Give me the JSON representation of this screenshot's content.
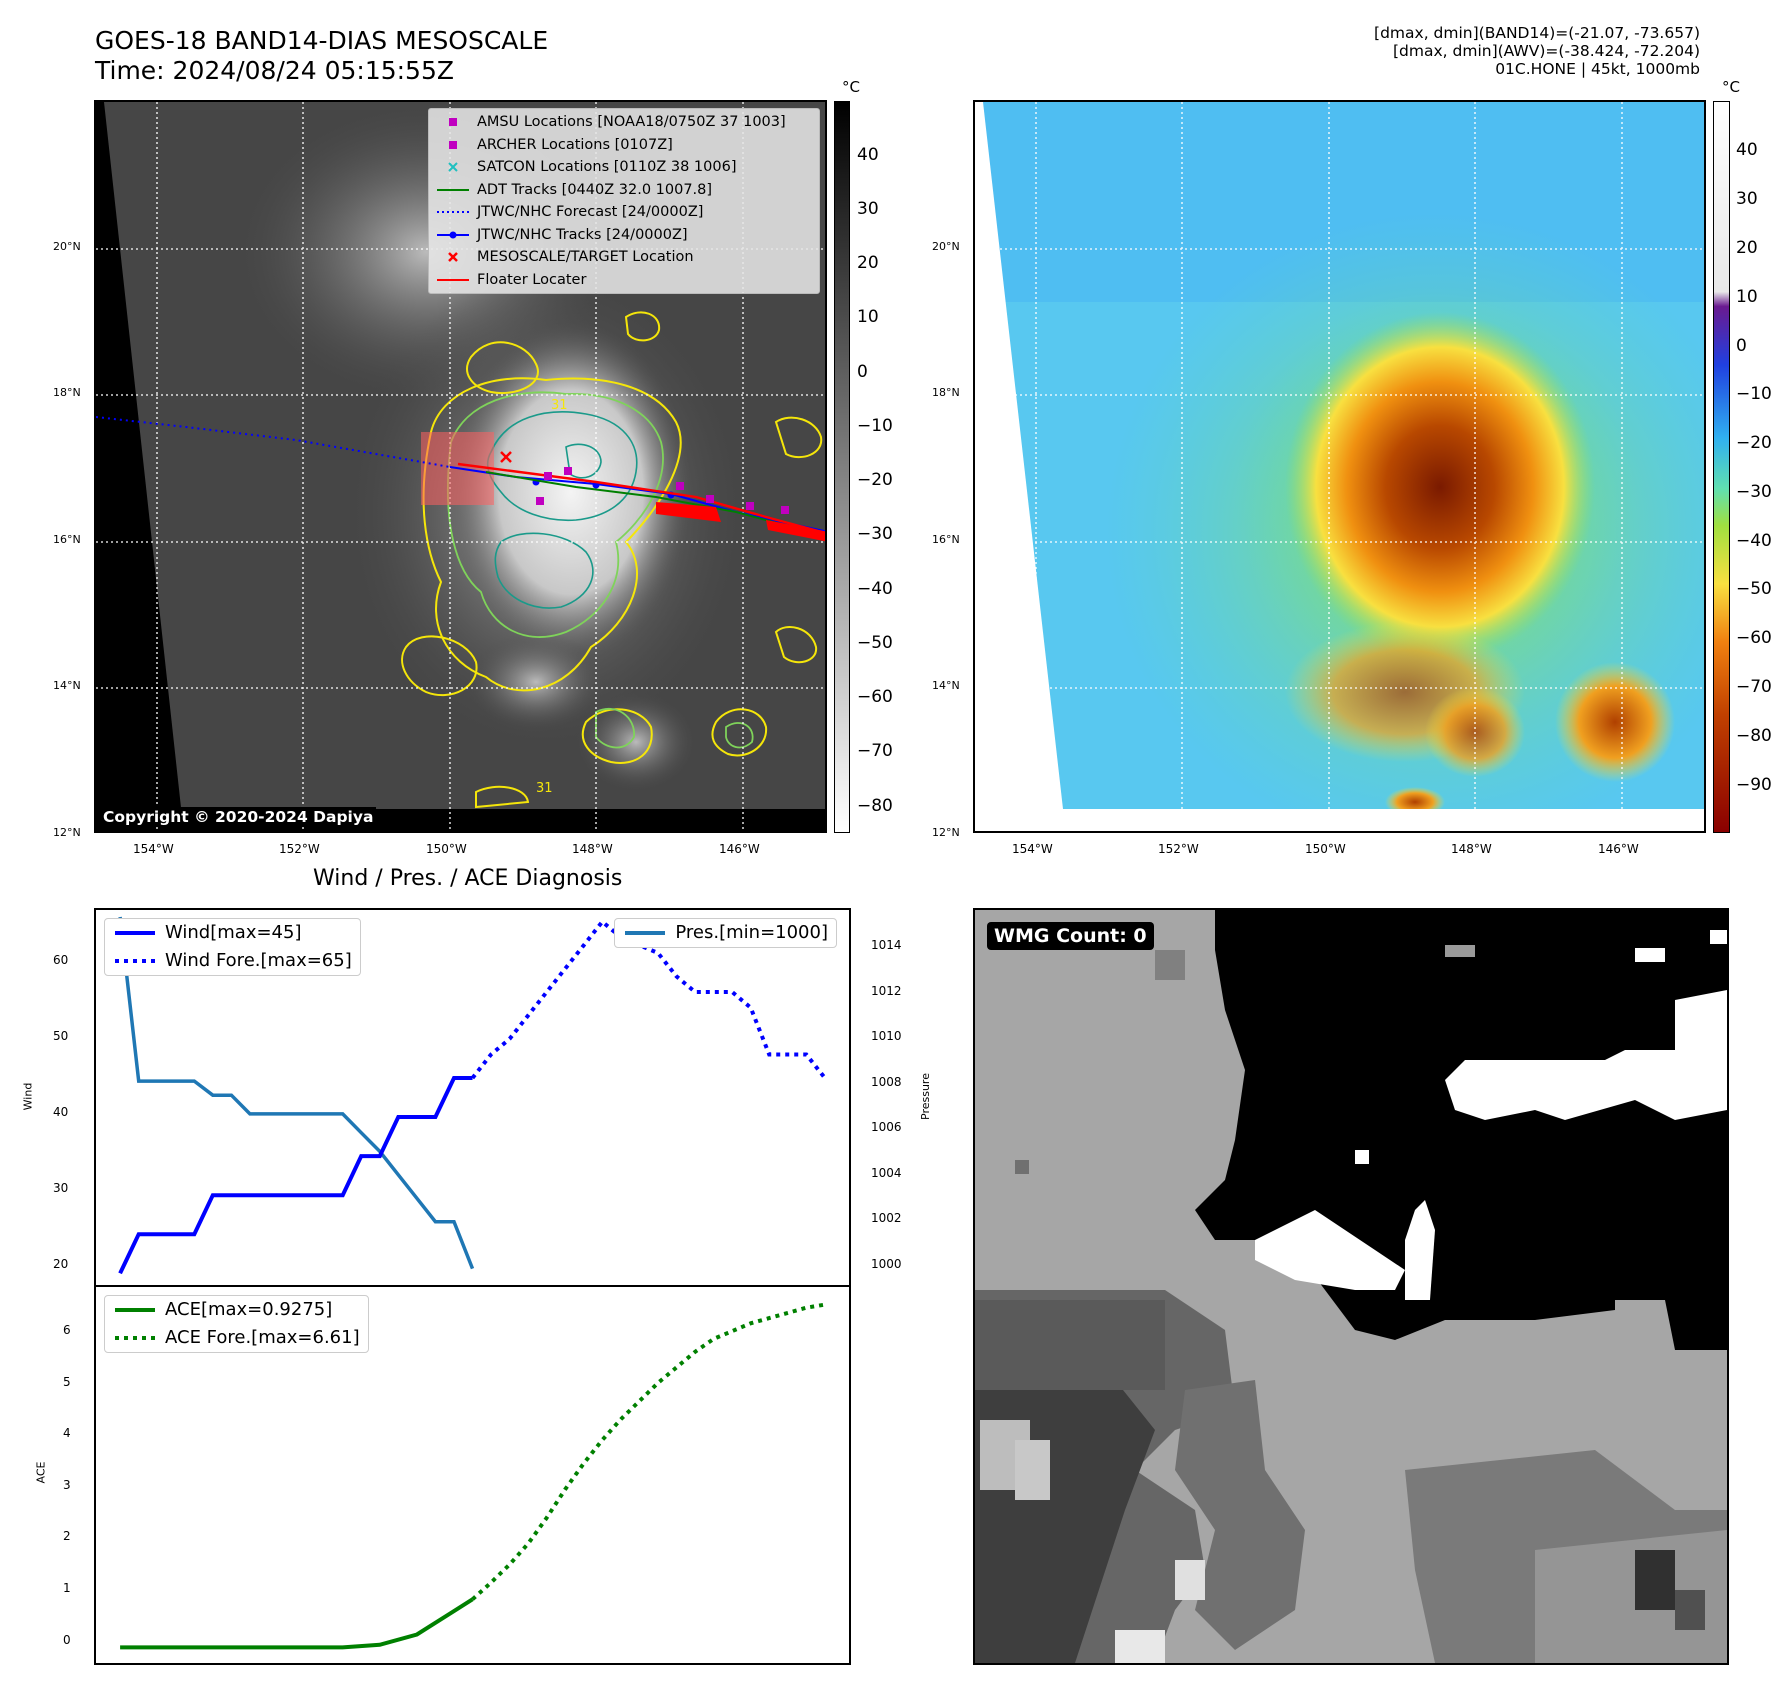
{
  "header": {
    "title_line1": "GOES-18 BAND14-DIAS MESOSCALE",
    "title_line2": "Time: 2024/08/24 05:15:55Z",
    "info_line1": "[dmax, dmin](BAND14)=(-21.07, -73.657)",
    "info_line2": "[dmax, dmin](AWV)=(-38.424, -72.204)",
    "info_line3": "01C.HONE | 45kt, 1000mb"
  },
  "map": {
    "lat_ticks": [
      "20°N",
      "18°N",
      "16°N",
      "14°N",
      "12°N"
    ],
    "lon_ticks": [
      "154°W",
      "152°W",
      "150°W",
      "148°W",
      "146°W"
    ],
    "copyright": "Copyright © 2020-2024 Dapiya",
    "contour_label": "31",
    "legend": [
      {
        "label": "AMSU Locations [NOAA18/0750Z 37 1003]",
        "symbol": "square",
        "color": "#c000c0"
      },
      {
        "label": "ARCHER Locations [0107Z]",
        "symbol": "square",
        "color": "#c000c0"
      },
      {
        "label": "SATCON Locations [0110Z 38 1006]",
        "symbol": "x",
        "color": "#20c0c0"
      },
      {
        "label": "ADT Tracks [0440Z 32.0 1007.8]",
        "symbol": "line",
        "color": "#008000"
      },
      {
        "label": "JTWC/NHC Forecast [24/0000Z]",
        "symbol": "dotted",
        "color": "#0000ff"
      },
      {
        "label": "JTWC/NHC Tracks [24/0000Z]",
        "symbol": "line-dot",
        "color": "#0000ff"
      },
      {
        "label": "MESOSCALE/TARGET Location",
        "symbol": "x",
        "color": "#ff0000"
      },
      {
        "label": "Floater Locater",
        "symbol": "line",
        "color": "#ff0000"
      }
    ],
    "cbar_unit": "°C",
    "cbar_gray_ticks": [
      "40",
      "30",
      "20",
      "10",
      "0",
      "−10",
      "−20",
      "−30",
      "−40",
      "−50",
      "−60",
      "−70",
      "−80"
    ],
    "cbar_color_ticks": [
      "40",
      "30",
      "20",
      "10",
      "0",
      "−10",
      "−20",
      "−30",
      "−40",
      "−50",
      "−60",
      "−70",
      "−80",
      "−90"
    ]
  },
  "diagnosis": {
    "title": "Wind / Pres. / ACE Diagnosis",
    "wind_ylabel": "Wind",
    "pres_ylabel": "Pressure",
    "ace_ylabel": "ACE",
    "wind_legend": [
      "Wind[max=45]",
      "Wind Fore.[max=65]"
    ],
    "pres_legend": [
      "Pres.[min=1000]"
    ],
    "ace_legend": [
      "ACE[max=0.9275]",
      "ACE Fore.[max=6.61]"
    ],
    "wind_ticks": [
      "60",
      "50",
      "40",
      "30",
      "20"
    ],
    "pres_ticks": [
      "1014",
      "1012",
      "1010",
      "1008",
      "1006",
      "1004",
      "1002",
      "1000"
    ],
    "ace_ticks": [
      "6",
      "5",
      "4",
      "3",
      "2",
      "1",
      "0"
    ]
  },
  "wmg": {
    "label": "WMG Count: 0"
  },
  "chart_data": [
    {
      "type": "line",
      "title": "Wind / Pres. / ACE Diagnosis",
      "ylabel": "Wind",
      "ylim": [
        18.5,
        66.5
      ],
      "series": [
        {
          "name": "Wind[max=45]",
          "x": [
            0,
            1,
            2,
            3,
            4,
            5,
            6,
            7,
            8,
            9,
            10,
            11,
            12,
            13,
            14,
            15,
            16,
            17,
            18,
            19
          ],
          "values": [
            20,
            25,
            25,
            25,
            25,
            30,
            30,
            30,
            30,
            30,
            30,
            30,
            30,
            35,
            35,
            40,
            40,
            40,
            45,
            45
          ]
        },
        {
          "name": "Wind Fore.[max=65]",
          "x": [
            19,
            20,
            21,
            22,
            23,
            24,
            25,
            26,
            27,
            28,
            29,
            30,
            31,
            32,
            33,
            34,
            35,
            36,
            37,
            38
          ],
          "values": [
            45,
            48,
            50,
            53,
            56,
            59,
            62,
            65,
            63,
            62,
            61,
            58,
            56,
            56,
            56,
            54,
            48,
            48,
            48,
            45
          ]
        }
      ]
    },
    {
      "type": "line",
      "ylabel": "Pressure",
      "ylim": [
        999.3,
        1015.3
      ],
      "series": [
        {
          "name": "Pres.[min=1000]",
          "x": [
            0,
            1,
            2,
            3,
            4,
            5,
            6,
            7,
            8,
            9,
            10,
            11,
            12,
            13,
            14,
            15,
            16,
            17,
            18,
            19
          ],
          "values": [
            1015,
            1008,
            1008,
            1008,
            1008,
            1007.4,
            1007.4,
            1006.6,
            1006.6,
            1006.6,
            1006.6,
            1006.6,
            1006.6,
            1005.8,
            1005,
            1004,
            1003,
            1002,
            1002,
            1000
          ]
        }
      ]
    },
    {
      "type": "line",
      "ylabel": "ACE",
      "ylim": [
        -0.3,
        6.95
      ],
      "series": [
        {
          "name": "ACE[max=0.9275]",
          "x": [
            0,
            2,
            4,
            6,
            8,
            10,
            12,
            14,
            16,
            18,
            19
          ],
          "values": [
            0,
            0,
            0,
            0,
            0,
            0,
            0,
            0.05,
            0.25,
            0.7,
            0.9275
          ]
        },
        {
          "name": "ACE Fore.[max=6.61]",
          "x": [
            19,
            20,
            21,
            22,
            23,
            24,
            25,
            26,
            27,
            28,
            29,
            30,
            31,
            32,
            33,
            34,
            35,
            36,
            37,
            38
          ],
          "values": [
            0.9275,
            1.25,
            1.6,
            2.0,
            2.5,
            3.05,
            3.55,
            4.0,
            4.4,
            4.75,
            5.1,
            5.4,
            5.7,
            5.95,
            6.1,
            6.25,
            6.35,
            6.45,
            6.55,
            6.61
          ]
        }
      ]
    }
  ],
  "colors": {
    "wind": "#0000ff",
    "pres": "#1f77b4",
    "ace": "#008000",
    "track_red": "#ff0000",
    "contour_yellow": "#f5e60a",
    "contour_teal": "#1a9a8a"
  }
}
